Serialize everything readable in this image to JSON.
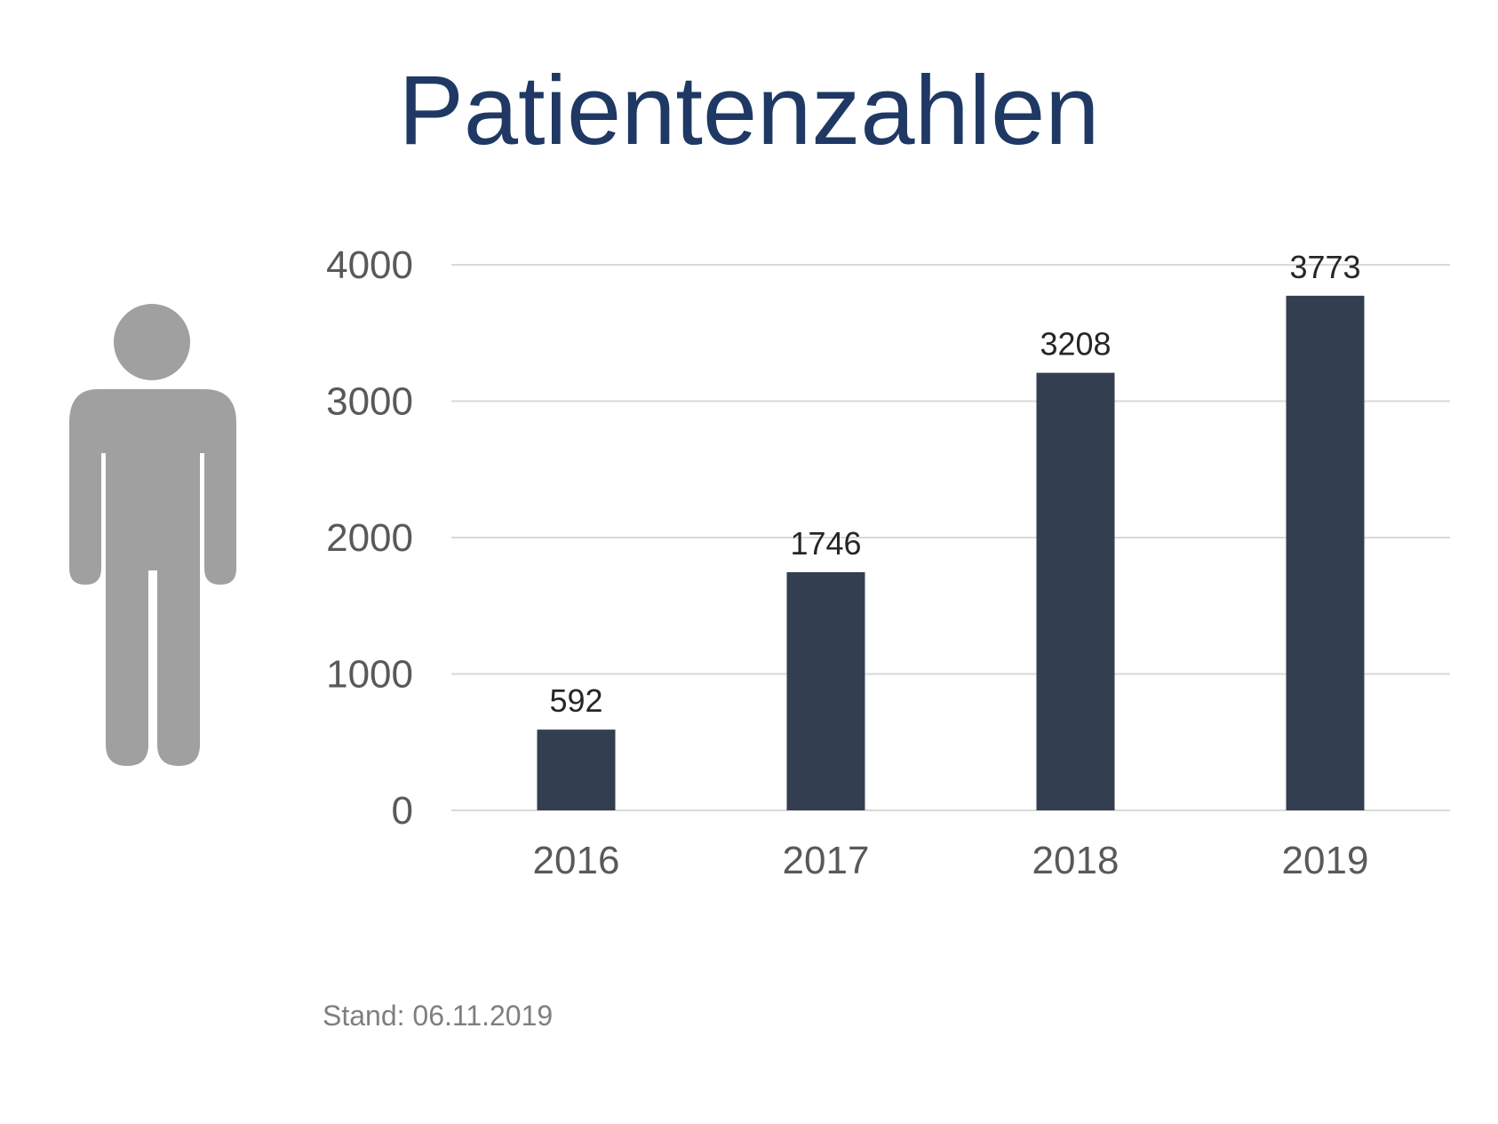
{
  "title": "Patientenzahlen",
  "footnote": "Stand: 06.11.2019",
  "icon": "person-icon",
  "colors": {
    "title": "#1f3864",
    "bar": "#333f50",
    "icon": "#a0a0a0",
    "grid": "#d9d9d9",
    "tick_text": "#595959",
    "footnote": "#7f7f7f"
  },
  "chart_data": {
    "type": "bar",
    "categories": [
      "2016",
      "2017",
      "2018",
      "2019"
    ],
    "values": [
      592,
      1746,
      3208,
      3773
    ],
    "data_labels": [
      "592",
      "1746",
      "3208",
      "3773"
    ],
    "yticks": [
      "0",
      "1000",
      "2000",
      "3000",
      "4000"
    ],
    "ylim": [
      0,
      4000
    ],
    "grid": true,
    "legend": "none",
    "title": "Patientenzahlen",
    "xlabel": "",
    "ylabel": ""
  }
}
